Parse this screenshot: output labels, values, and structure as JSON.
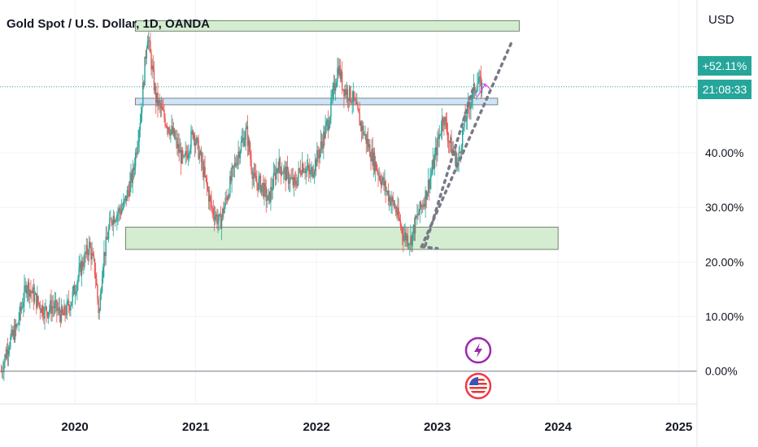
{
  "header": {
    "title": "Gold Spot / U.S. Dollar, 1D, OANDA",
    "currency": "USD"
  },
  "price_badge": {
    "change": "+52.11%",
    "countdown": "21:08:33",
    "color": "#26a69a"
  },
  "events": {
    "flash_icon": "lightning-icon",
    "flag_icon": "us-flag-icon"
  },
  "chart_data": {
    "type": "candlestick",
    "yscale": "percent",
    "ylim": [
      -6,
      68
    ],
    "xlim": [
      2019.38,
      2025.15
    ],
    "y_ticks": [
      "0.00%",
      "10.00%",
      "20.00%",
      "30.00%",
      "40.00%"
    ],
    "y_tick_values": [
      0,
      10,
      20,
      30,
      40
    ],
    "x_ticks": [
      "2020",
      "2021",
      "2022",
      "2023",
      "2024",
      "2025"
    ],
    "x_tick_values": [
      2020,
      2021,
      2022,
      2023,
      2024,
      2025
    ],
    "up_color": "#26a69a",
    "down_color": "#ef5350",
    "price_path": [
      [
        2019.39,
        0
      ],
      [
        2019.45,
        5
      ],
      [
        2019.52,
        8
      ],
      [
        2019.6,
        16
      ],
      [
        2019.68,
        13
      ],
      [
        2019.75,
        11
      ],
      [
        2019.82,
        12
      ],
      [
        2019.9,
        10
      ],
      [
        2019.97,
        13
      ],
      [
        2020.05,
        19
      ],
      [
        2020.12,
        23
      ],
      [
        2020.17,
        18
      ],
      [
        2020.2,
        10
      ],
      [
        2020.23,
        20
      ],
      [
        2020.3,
        28
      ],
      [
        2020.4,
        30
      ],
      [
        2020.48,
        36
      ],
      [
        2020.55,
        48
      ],
      [
        2020.6,
        62
      ],
      [
        2020.67,
        50
      ],
      [
        2020.75,
        46
      ],
      [
        2020.82,
        43
      ],
      [
        2020.9,
        38
      ],
      [
        2020.98,
        44
      ],
      [
        2021.05,
        38
      ],
      [
        2021.13,
        30
      ],
      [
        2021.2,
        27
      ],
      [
        2021.27,
        33
      ],
      [
        2021.35,
        40
      ],
      [
        2021.42,
        44
      ],
      [
        2021.48,
        35
      ],
      [
        2021.55,
        34
      ],
      [
        2021.6,
        31
      ],
      [
        2021.68,
        38
      ],
      [
        2021.75,
        36
      ],
      [
        2021.82,
        34
      ],
      [
        2021.88,
        38
      ],
      [
        2021.95,
        36
      ],
      [
        2022.02,
        40
      ],
      [
        2022.1,
        46
      ],
      [
        2022.18,
        56
      ],
      [
        2022.22,
        52
      ],
      [
        2022.3,
        50
      ],
      [
        2022.37,
        45
      ],
      [
        2022.45,
        40
      ],
      [
        2022.52,
        36
      ],
      [
        2022.6,
        32
      ],
      [
        2022.65,
        30
      ],
      [
        2022.72,
        25
      ],
      [
        2022.78,
        24
      ],
      [
        2022.83,
        28
      ],
      [
        2022.9,
        32
      ],
      [
        2022.97,
        38
      ],
      [
        2023.05,
        47
      ],
      [
        2023.1,
        42
      ],
      [
        2023.17,
        38
      ],
      [
        2023.22,
        45
      ],
      [
        2023.28,
        50
      ],
      [
        2023.33,
        53
      ],
      [
        2023.37,
        52
      ]
    ],
    "zones": [
      {
        "x0": 2020.5,
        "x1": 2023.68,
        "y0": 62.3,
        "y1": 64.2,
        "color": "#d4edd0"
      },
      {
        "x0": 2020.5,
        "x1": 2023.5,
        "y0": 48.8,
        "y1": 50.0,
        "color": "#cfe4fb"
      },
      {
        "x0": 2020.42,
        "x1": 2024.0,
        "y0": 22.3,
        "y1": 26.4,
        "color": "#d4edd0"
      }
    ],
    "trendlines": [
      {
        "from": [
          2022.87,
          22.8
        ],
        "to": [
          2023.62,
          60.5
        ],
        "style": "dotted"
      },
      {
        "from": [
          2022.87,
          22.8
        ],
        "to": [
          2023.0,
          22.5
        ],
        "style": "dotted"
      },
      {
        "from": [
          2022.9,
          23.0
        ],
        "to": [
          2023.3,
          52.0
        ],
        "style": "dotted"
      }
    ],
    "current_value": 52.11
  }
}
